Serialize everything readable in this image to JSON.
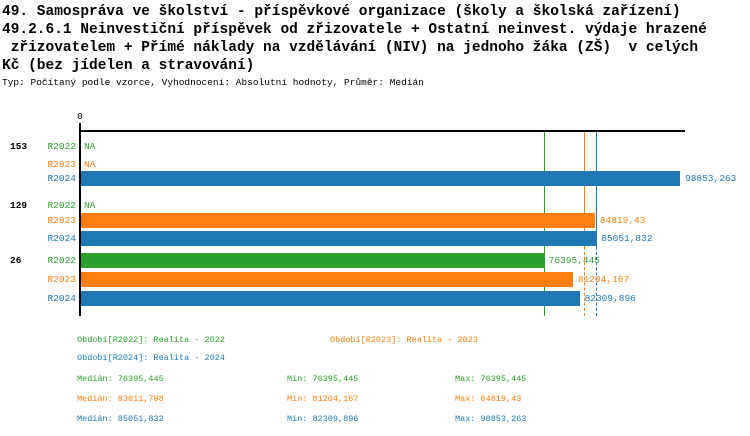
{
  "chart_data": {
    "type": "bar",
    "orientation": "horizontal",
    "title_lines": [
      "49. Samospráva ve školství - příspěvkové organizace (školy a školská zařízení)",
      "49.2.6.1 Neinvestiční příspěvek od zřizovatele + Ostatní neinvest. výdaje hrazené",
      " zřizovatelem + Přímé náklady na vzdělávání (NIV) na jednoho žáka (ZŠ)  v celých",
      "Kč (bez jídelen a stravování)"
    ],
    "subtitle": "Typ: Počítaný podle vzorce, Vyhodnocení: Absolutní hodnoty, Průměr: Medián",
    "x_axis": {
      "zero_label": "0"
    },
    "series": [
      "R2022",
      "R2023",
      "R2024"
    ],
    "series_colors": {
      "R2022": "#2ca02c",
      "R2023": "#ff7f0e",
      "R2024": "#1f77b4"
    },
    "axis_color": "#000000",
    "groups": [
      {
        "label": "153",
        "rows": [
          {
            "series": "R2022",
            "value": null,
            "display": "NA"
          },
          {
            "series": "R2023",
            "value": null,
            "display": "NA"
          },
          {
            "series": "R2024",
            "value": 98853.263,
            "display": "98853,263"
          }
        ]
      },
      {
        "label": "129",
        "rows": [
          {
            "series": "R2022",
            "value": null,
            "display": "NA"
          },
          {
            "series": "R2023",
            "value": 84819.43,
            "display": "84819,43"
          },
          {
            "series": "R2024",
            "value": 85051.832,
            "display": "85051,832"
          }
        ]
      },
      {
        "label": "26",
        "rows": [
          {
            "series": "R2022",
            "value": 76395.445,
            "display": "76395,445"
          },
          {
            "series": "R2023",
            "value": 81204.167,
            "display": "81204,167"
          },
          {
            "series": "R2024",
            "value": 82309.896,
            "display": "82309,896"
          }
        ]
      }
    ],
    "median_lines": [
      {
        "series": "R2022",
        "value": 76395.445
      },
      {
        "series": "R2023",
        "value": 83011.798
      },
      {
        "series": "R2024",
        "value": 85051.832
      }
    ],
    "legend": [
      {
        "series": "R2022",
        "text": "Období[R2022]: Realita - 2022"
      },
      {
        "series": "R2023",
        "text": "Období[R2023]: Realita - 2023"
      },
      {
        "series": "R2024",
        "text": "Období[R2024]: Realita - 2024"
      }
    ],
    "stats": [
      {
        "series": "R2022",
        "median": "Medián: 76395,445",
        "min": "Min: 76395,445",
        "max": "Max: 76395,445"
      },
      {
        "series": "R2023",
        "median": "Medián: 83011,798",
        "min": "Min: 81204,167",
        "max": "Max: 84819,43"
      },
      {
        "series": "R2024",
        "median": "Medián: 85051,832",
        "min": "Min: 82309,896",
        "max": "Max: 98853,263"
      }
    ]
  }
}
